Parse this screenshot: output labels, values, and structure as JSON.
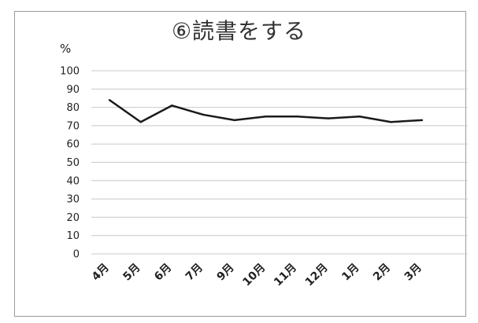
{
  "chart_data": {
    "type": "line",
    "title": "⑥読書をする",
    "ylabel": "%",
    "xlabel": "",
    "categories": [
      "4月",
      "5月",
      "6月",
      "7月",
      "9月",
      "10月",
      "11月",
      "12月",
      "1月",
      "2月",
      "3月"
    ],
    "series": [
      {
        "values": [
          84,
          72,
          81,
          76,
          73,
          75,
          75,
          74,
          75,
          72,
          73
        ]
      }
    ],
    "ylim": [
      0,
      100
    ],
    "yticks": [
      0,
      10,
      20,
      30,
      40,
      50,
      60,
      70,
      80,
      90,
      100
    ],
    "grid": true,
    "legend": "none",
    "colors": {
      "line": "#1a1a1a",
      "grid": "#c8c8c8"
    }
  }
}
